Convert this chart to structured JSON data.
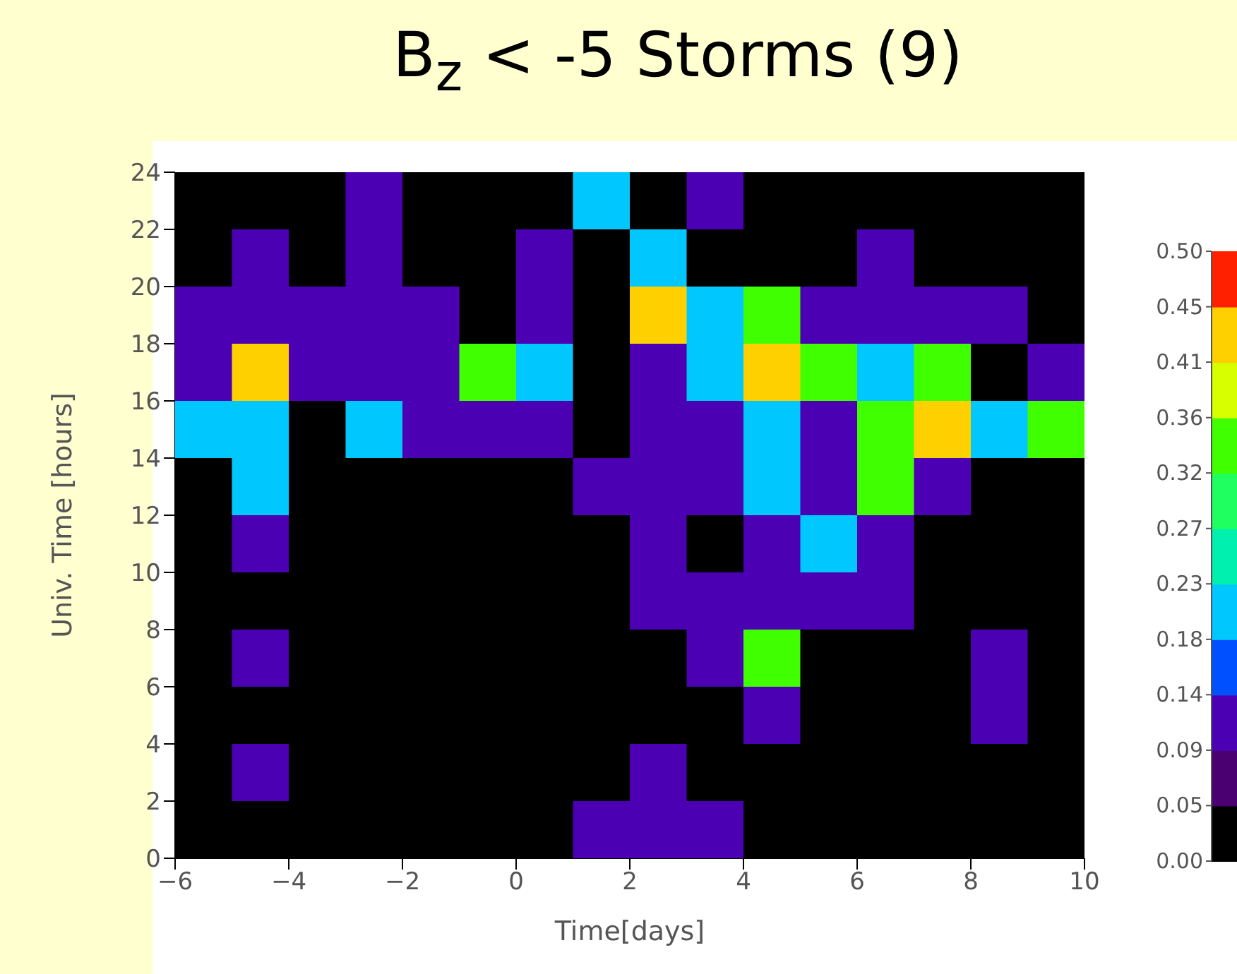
{
  "chart_data": {
    "type": "heatmap",
    "title": "B$_{z}$ < -5 Storms (9)",
    "xlabel": "Time[days]",
    "ylabel": "Univ. Time [hours]",
    "xlim": [
      -6,
      10
    ],
    "xticks": [
      {
        "value": -6,
        "label": "−6"
      },
      {
        "value": -4,
        "label": "−4"
      },
      {
        "value": -2,
        "label": "−2"
      },
      0,
      2,
      4,
      6,
      8,
      10
    ],
    "ylim": [
      0,
      24
    ],
    "yticks": [
      0,
      2,
      4,
      6,
      8,
      10,
      12,
      14,
      16,
      18,
      20,
      22,
      24
    ],
    "clim": [
      0,
      0.5
    ],
    "cticks": [
      {
        "value": 0,
        "label": "0.00"
      },
      {
        "value": 0.0455,
        "label": "0.05"
      },
      {
        "value": 0.0909,
        "label": "0.09"
      },
      {
        "value": 0.1364,
        "label": "0.14"
      },
      {
        "value": 0.1818,
        "label": "0.18"
      },
      {
        "value": 0.2273,
        "label": "0.23"
      },
      {
        "value": 0.2727,
        "label": "0.27"
      },
      {
        "value": 0.3182,
        "label": "0.32"
      },
      {
        "value": 0.3636,
        "label": "0.36"
      },
      {
        "value": 0.4091,
        "label": "0.41"
      },
      {
        "value": 0.4545,
        "label": "0.45"
      },
      {
        "value": 0.5,
        "label": "0.50"
      }
    ],
    "cells": [
      [
        0,
        0,
        0,
        0.11,
        0,
        0,
        0,
        0.22,
        0,
        0.11,
        0,
        0,
        0,
        0,
        0,
        0
      ],
      [
        0,
        0.11,
        0,
        0.11,
        0,
        0,
        0.11,
        0,
        0.22,
        0,
        0,
        0,
        0.11,
        0,
        0,
        0
      ],
      [
        0.11,
        0.11,
        0.11,
        0.11,
        0.11,
        0,
        0.11,
        0,
        0.44,
        0.22,
        0.33,
        0.11,
        0.11,
        0.11,
        0.11,
        0
      ],
      [
        0.11,
        0.44,
        0.11,
        0.11,
        0.11,
        0.33,
        0.22,
        0,
        0.11,
        0.22,
        0.44,
        0.33,
        0.22,
        0.33,
        0,
        0.11
      ],
      [
        0.22,
        0.22,
        0,
        0.22,
        0.11,
        0.11,
        0.11,
        0,
        0.11,
        0.11,
        0.22,
        0.11,
        0.33,
        0.44,
        0.22,
        0.33
      ],
      [
        0,
        0.22,
        0,
        0,
        0,
        0,
        0,
        0.11,
        0.11,
        0.11,
        0.22,
        0.11,
        0.33,
        0.11,
        0,
        0
      ],
      [
        0,
        0.11,
        0,
        0,
        0,
        0,
        0,
        0,
        0.11,
        0,
        0.11,
        0.22,
        0.11,
        0,
        0,
        0
      ],
      [
        0,
        0,
        0,
        0,
        0,
        0,
        0,
        0,
        0.11,
        0.11,
        0.11,
        0.11,
        0.11,
        0,
        0,
        0
      ],
      [
        0,
        0.11,
        0,
        0,
        0,
        0,
        0,
        0,
        0,
        0.11,
        0.33,
        0,
        0,
        0,
        0.11,
        0
      ],
      [
        0,
        0,
        0,
        0,
        0,
        0,
        0,
        0,
        0,
        0,
        0.11,
        0,
        0,
        0,
        0.11,
        0
      ],
      [
        0,
        0.11,
        0,
        0,
        0,
        0,
        0,
        0,
        0.11,
        0,
        0,
        0,
        0,
        0,
        0,
        0
      ],
      [
        0,
        0,
        0,
        0,
        0,
        0,
        0,
        0.11,
        0.11,
        0.11,
        0,
        0,
        0,
        0,
        0,
        0
      ]
    ]
  }
}
